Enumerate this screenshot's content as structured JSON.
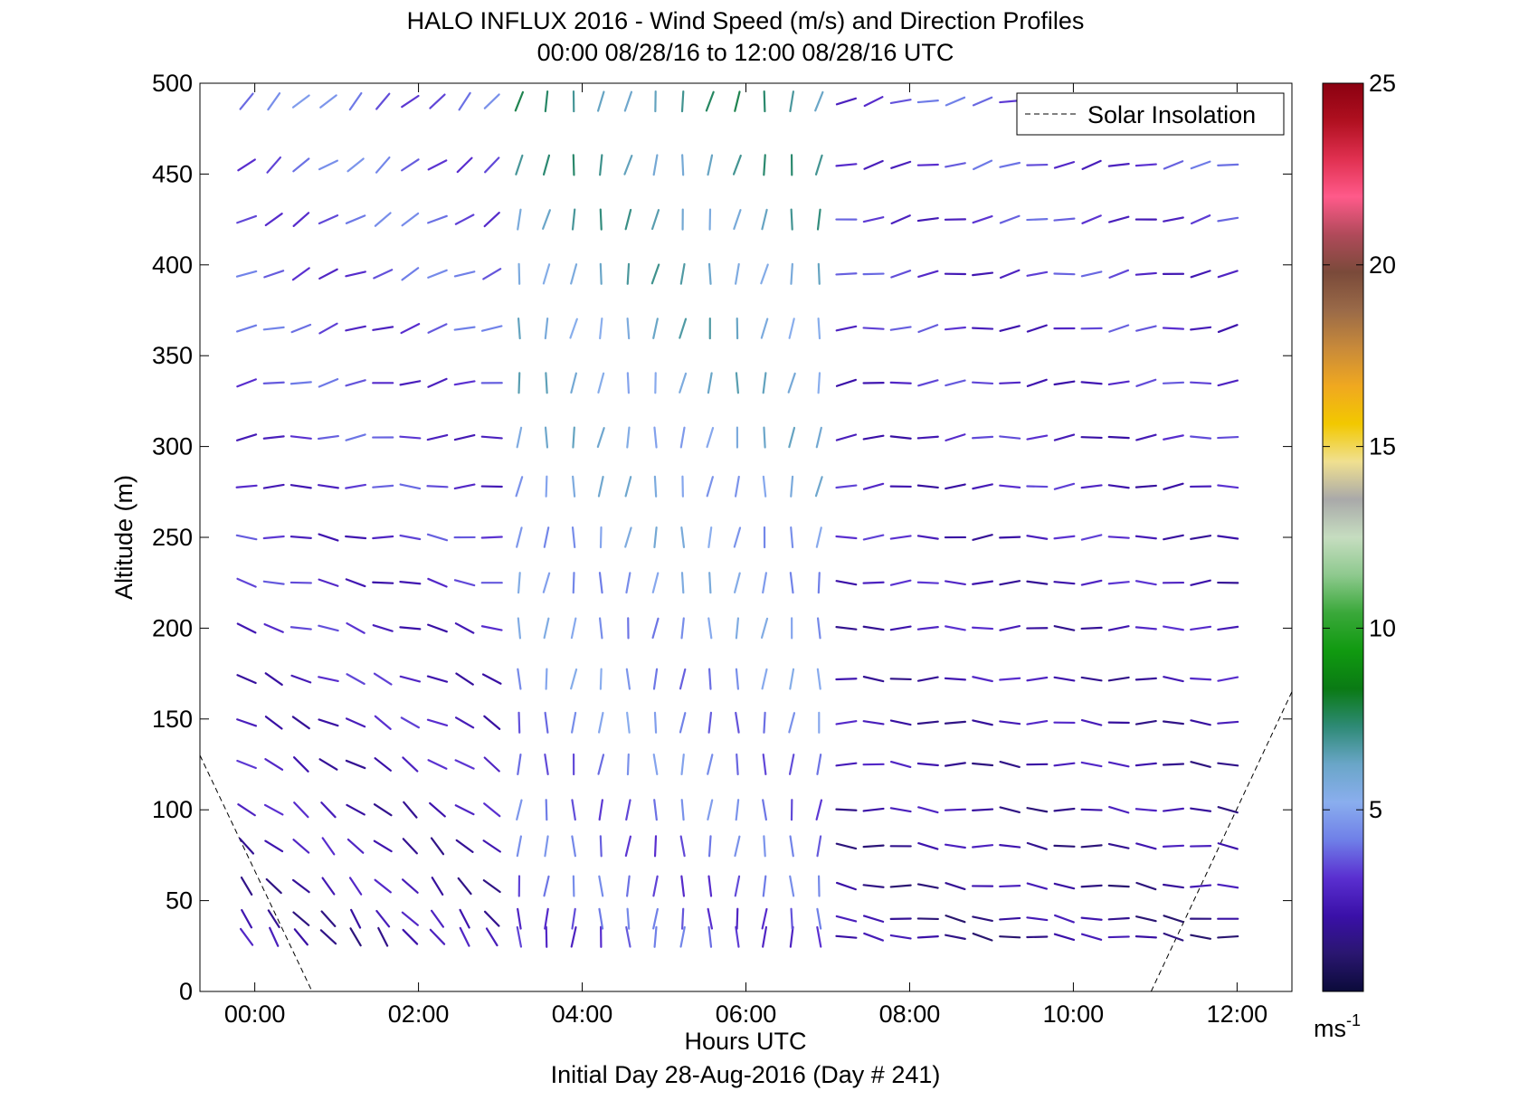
{
  "chart_data": {
    "type": "wind-barb-profile",
    "title": "HALO INFLUX 2016 - Wind Speed (m/s) and Direction Profiles",
    "subtitle": "00:00 08/28/16 to 12:00 08/28/16  UTC",
    "xlabel": "Hours UTC",
    "ylabel": "Altitude (m)",
    "footer": "Initial Day 28-Aug-2016 (Day # 241)",
    "xlim": [
      -0.67,
      12.67
    ],
    "ylim": [
      0,
      500
    ],
    "x_ticks": [
      {
        "value": 0,
        "label": "00:00"
      },
      {
        "value": 2,
        "label": "02:00"
      },
      {
        "value": 4,
        "label": "04:00"
      },
      {
        "value": 6,
        "label": "06:00"
      },
      {
        "value": 8,
        "label": "08:00"
      },
      {
        "value": 10,
        "label": "10:00"
      },
      {
        "value": 12,
        "label": "12:00"
      }
    ],
    "y_ticks": [
      0,
      50,
      100,
      150,
      200,
      250,
      300,
      350,
      400,
      450,
      500
    ],
    "legend": {
      "entries": [
        "Solar Insolation"
      ],
      "position": "top-right"
    },
    "colorbar": {
      "range": [
        0,
        25
      ],
      "ticks": [
        5,
        10,
        15,
        20,
        25
      ],
      "unit_label": "ms",
      "unit_exponent": "-1",
      "colors": [
        "#0b0b3a",
        "#2a1670",
        "#3a10a8",
        "#5a2fd0",
        "#6f7fe8",
        "#8aaeee",
        "#6aa6c8",
        "#2e8a76",
        "#0a7a14",
        "#109a10",
        "#3aa83a",
        "#8ec98e",
        "#c6ddc0",
        "#a9a9a9",
        "#f0e090",
        "#f2c800",
        "#f0a820",
        "#c88a3a",
        "#9a6a48",
        "#7a4a3a",
        "#b04a5a",
        "#ff5a8a",
        "#e03050",
        "#b01020",
        "#8a0010"
      ]
    },
    "solar_insolation": [
      {
        "x": [
          -0.67,
          0.7
        ],
        "y": [
          130,
          0
        ]
      },
      {
        "x": [
          10.95,
          12.67
        ],
        "y": [
          0,
          165
        ]
      }
    ],
    "heights": [
      30,
      40,
      58,
      80,
      100,
      125,
      148,
      172,
      200,
      225,
      250,
      278,
      305,
      335,
      365,
      395,
      425,
      455,
      490
    ],
    "time_step_hours": 0.333,
    "time_count": 37,
    "wind_regimes": [
      {
        "t_end": 3.0,
        "upper_dir_deg": 225,
        "lower_dir_deg": 330,
        "speed": 3.5
      },
      {
        "t_end": 7.0,
        "upper_dir_deg": 190,
        "lower_dir_deg": 180,
        "speed": 6.0
      },
      {
        "t_end": 12.0,
        "upper_dir_deg": 255,
        "lower_dir_deg": 280,
        "speed": 3.0
      }
    ]
  }
}
